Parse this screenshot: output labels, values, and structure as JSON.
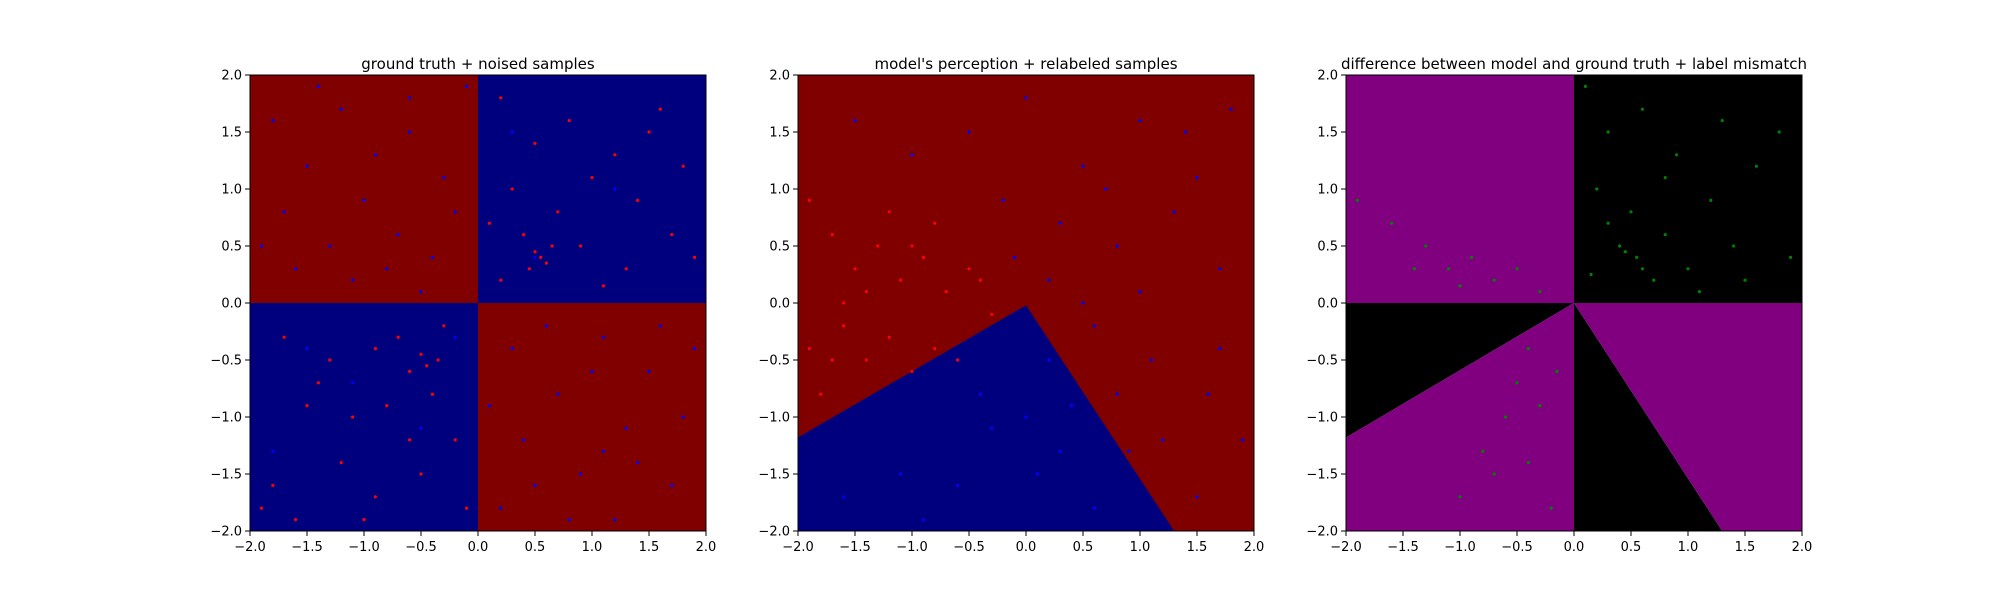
{
  "chart_data": [
    {
      "type": "scatter",
      "title": "ground truth + noised samples",
      "xlim": [
        -2.0,
        2.0
      ],
      "ylim": [
        -2.0,
        2.0
      ],
      "xticks": [
        "−2.0",
        "−1.5",
        "−1.0",
        "−0.5",
        "0.0",
        "0.5",
        "1.0",
        "1.5",
        "2.0"
      ],
      "yticks": [
        "−2.0",
        "−1.5",
        "−1.0",
        "−0.5",
        "0.0",
        "0.5",
        "1.0",
        "1.5",
        "2.0"
      ],
      "xtick_values": [
        -2.0,
        -1.5,
        -1.0,
        -0.5,
        0.0,
        0.5,
        1.0,
        1.5,
        2.0
      ],
      "ytick_values": [
        -2.0,
        -1.5,
        -1.0,
        -0.5,
        0.0,
        0.5,
        1.0,
        1.5,
        2.0
      ],
      "background": "quadrants",
      "colors": {
        "class_a": "#800000",
        "class_b": "#00007f"
      },
      "point_colors": {
        "red": "#ff0000",
        "blue": "#0000ff"
      },
      "series": [
        {
          "color": "blue",
          "points": [
            [
              -1.8,
              1.6
            ],
            [
              -1.5,
              1.2
            ],
            [
              -1.2,
              1.7
            ],
            [
              -0.9,
              1.3
            ],
            [
              -0.6,
              1.5
            ],
            [
              -0.3,
              1.1
            ],
            [
              -1.7,
              0.8
            ],
            [
              -1.3,
              0.5
            ],
            [
              -1.0,
              0.9
            ],
            [
              -0.7,
              0.6
            ],
            [
              -0.4,
              0.4
            ],
            [
              -0.2,
              0.8
            ],
            [
              -1.6,
              0.3
            ],
            [
              -1.1,
              0.2
            ],
            [
              -0.8,
              0.3
            ],
            [
              -0.5,
              0.1
            ],
            [
              -1.4,
              1.9
            ],
            [
              -0.1,
              1.9
            ],
            [
              -1.9,
              0.5
            ],
            [
              -0.6,
              1.8
            ],
            [
              0.3,
              -0.4
            ],
            [
              0.7,
              -0.8
            ],
            [
              1.1,
              -0.3
            ],
            [
              1.5,
              -0.6
            ],
            [
              1.8,
              -1.0
            ],
            [
              0.4,
              -1.2
            ],
            [
              0.9,
              -1.5
            ],
            [
              1.3,
              -1.1
            ],
            [
              1.7,
              -1.6
            ],
            [
              0.2,
              -1.8
            ],
            [
              0.6,
              -0.2
            ],
            [
              1.0,
              -0.6
            ],
            [
              1.4,
              -1.4
            ],
            [
              0.8,
              -1.9
            ],
            [
              1.9,
              -0.4
            ],
            [
              0.5,
              -1.6
            ],
            [
              1.2,
              -1.9
            ],
            [
              0.1,
              -0.9
            ],
            [
              1.6,
              -0.2
            ],
            [
              1.1,
              -1.3
            ],
            [
              -1.5,
              -0.4
            ],
            [
              -1.1,
              -0.7
            ],
            [
              -0.5,
              -1.1
            ],
            [
              -0.2,
              -0.3
            ],
            [
              -1.8,
              -1.3
            ],
            [
              0.5,
              0.4
            ],
            [
              1.2,
              1.0
            ],
            [
              0.3,
              1.5
            ]
          ]
        },
        {
          "color": "red",
          "points": [
            [
              0.2,
              1.8
            ],
            [
              0.5,
              1.4
            ],
            [
              0.8,
              1.6
            ],
            [
              1.2,
              1.3
            ],
            [
              1.6,
              1.7
            ],
            [
              0.3,
              1.0
            ],
            [
              0.7,
              0.8
            ],
            [
              1.0,
              1.1
            ],
            [
              1.4,
              0.9
            ],
            [
              1.8,
              1.2
            ],
            [
              0.4,
              0.6
            ],
            [
              0.55,
              0.4
            ],
            [
              0.6,
              0.35
            ],
            [
              0.5,
              0.45
            ],
            [
              0.65,
              0.5
            ],
            [
              0.45,
              0.3
            ],
            [
              0.9,
              0.5
            ],
            [
              1.3,
              0.3
            ],
            [
              1.7,
              0.6
            ],
            [
              0.2,
              0.2
            ],
            [
              1.1,
              0.15
            ],
            [
              1.9,
              0.4
            ],
            [
              0.1,
              0.7
            ],
            [
              1.5,
              1.5
            ],
            [
              -1.7,
              -0.3
            ],
            [
              -1.3,
              -0.5
            ],
            [
              -0.9,
              -0.4
            ],
            [
              -0.6,
              -0.6
            ],
            [
              -0.3,
              -0.2
            ],
            [
              -1.5,
              -0.9
            ],
            [
              -1.1,
              -1.0
            ],
            [
              -0.8,
              -0.9
            ],
            [
              -0.4,
              -0.8
            ],
            [
              -1.8,
              -1.6
            ],
            [
              -1.2,
              -1.4
            ],
            [
              -0.9,
              -1.7
            ],
            [
              -0.5,
              -1.5
            ],
            [
              -0.2,
              -1.2
            ],
            [
              -1.6,
              -1.9
            ],
            [
              -1.0,
              -1.9
            ],
            [
              -0.7,
              -0.3
            ],
            [
              -0.5,
              -0.45
            ],
            [
              -0.35,
              -0.5
            ],
            [
              -0.45,
              -0.55
            ],
            [
              -1.9,
              -1.8
            ],
            [
              -0.6,
              -1.2
            ],
            [
              -1.4,
              -0.7
            ],
            [
              -0.1,
              -1.8
            ]
          ]
        }
      ]
    },
    {
      "type": "scatter",
      "title": "model's perception + relabeled samples",
      "xlim": [
        -2.0,
        2.0
      ],
      "ylim": [
        -2.0,
        2.0
      ],
      "xticks": [
        "−2.0",
        "−1.5",
        "−1.0",
        "−0.5",
        "0.0",
        "0.5",
        "1.0",
        "1.5",
        "2.0"
      ],
      "yticks": [
        "−2.0",
        "−1.5",
        "−1.0",
        "−0.5",
        "0.0",
        "0.5",
        "1.0",
        "1.5",
        "2.0"
      ],
      "xtick_values": [
        -2.0,
        -1.5,
        -1.0,
        -0.5,
        0.0,
        0.5,
        1.0,
        1.5,
        2.0
      ],
      "ytick_values": [
        -2.0,
        -1.5,
        -1.0,
        -0.5,
        0.0,
        0.5,
        1.0,
        1.5,
        2.0
      ],
      "background": "wedge",
      "wedge_polygon": [
        [
          -2.0,
          -1.18
        ],
        [
          0.0,
          -0.02
        ],
        [
          1.3,
          -2.0
        ],
        [
          -2.0,
          -2.0
        ]
      ],
      "colors": {
        "class_a": "#800000",
        "class_b": "#00007f"
      },
      "point_colors": {
        "red": "#ff0000",
        "blue": "#0000ff"
      },
      "series": [
        {
          "color": "red",
          "points": [
            [
              -1.9,
              0.9
            ],
            [
              -1.7,
              0.6
            ],
            [
              -1.5,
              0.3
            ],
            [
              -1.3,
              0.5
            ],
            [
              -1.1,
              0.2
            ],
            [
              -0.9,
              0.4
            ],
            [
              -0.7,
              0.1
            ],
            [
              -0.5,
              0.3
            ],
            [
              -0.3,
              -0.1
            ],
            [
              -1.6,
              -0.2
            ],
            [
              -1.4,
              -0.5
            ],
            [
              -1.2,
              -0.3
            ],
            [
              -1.0,
              -0.6
            ],
            [
              -0.8,
              -0.4
            ],
            [
              -0.6,
              -0.5
            ],
            [
              -1.8,
              -0.8
            ],
            [
              -1.9,
              -0.4
            ],
            [
              -1.6,
              0.0
            ],
            [
              -1.0,
              0.5
            ],
            [
              -0.8,
              0.7
            ],
            [
              -1.2,
              0.8
            ],
            [
              -0.4,
              0.2
            ],
            [
              -1.4,
              0.1
            ],
            [
              -1.7,
              -0.5
            ]
          ]
        },
        {
          "color": "blue",
          "points": [
            [
              -1.5,
              1.6
            ],
            [
              -1.0,
              1.3
            ],
            [
              -0.5,
              1.5
            ],
            [
              0.0,
              1.8
            ],
            [
              0.5,
              1.2
            ],
            [
              1.0,
              1.6
            ],
            [
              1.5,
              1.1
            ],
            [
              1.8,
              1.7
            ],
            [
              -0.2,
              0.9
            ],
            [
              0.3,
              0.7
            ],
            [
              0.8,
              0.5
            ],
            [
              1.3,
              0.8
            ],
            [
              1.7,
              0.3
            ],
            [
              0.2,
              0.2
            ],
            [
              0.6,
              -0.2
            ],
            [
              1.1,
              -0.5
            ],
            [
              1.6,
              -0.8
            ],
            [
              1.9,
              -1.2
            ],
            [
              1.5,
              -1.7
            ],
            [
              0.9,
              -1.3
            ],
            [
              0.4,
              -0.9
            ],
            [
              0.1,
              -1.5
            ],
            [
              -0.3,
              -1.1
            ],
            [
              -0.6,
              -1.6
            ],
            [
              0.6,
              -1.8
            ],
            [
              -1.1,
              -1.5
            ],
            [
              -1.6,
              -1.7
            ],
            [
              -0.9,
              -1.9
            ],
            [
              0.2,
              -0.5
            ],
            [
              0.8,
              -0.8
            ],
            [
              0.0,
              -1.0
            ],
            [
              1.2,
              -1.2
            ],
            [
              -0.4,
              -0.8
            ],
            [
              0.3,
              -1.3
            ],
            [
              1.7,
              -0.4
            ],
            [
              1.0,
              0.1
            ],
            [
              -0.1,
              0.4
            ],
            [
              0.7,
              1.0
            ],
            [
              1.4,
              1.5
            ],
            [
              0.5,
              0.0
            ]
          ]
        }
      ]
    },
    {
      "type": "scatter",
      "title": "difference between model and ground truth + label mismatch",
      "xlim": [
        -2.0,
        2.0
      ],
      "ylim": [
        -2.0,
        2.0
      ],
      "xticks": [
        "−2.0",
        "−1.5",
        "−1.0",
        "−0.5",
        "0.0",
        "0.5",
        "1.0",
        "1.5",
        "2.0"
      ],
      "yticks": [
        "−2.0",
        "−1.5",
        "−1.0",
        "−0.5",
        "0.0",
        "0.5",
        "1.0",
        "1.5",
        "2.0"
      ],
      "xtick_values": [
        -2.0,
        -1.5,
        -1.0,
        -0.5,
        0.0,
        0.5,
        1.0,
        1.5,
        2.0
      ],
      "ytick_values": [
        -2.0,
        -1.5,
        -1.0,
        -0.5,
        0.0,
        0.5,
        1.0,
        1.5,
        2.0
      ],
      "background": "difference",
      "colors": {
        "match": "#800080",
        "mismatch": "#000000"
      },
      "point_colors": {
        "green": "#008000"
      },
      "series": [
        {
          "color": "green",
          "points": [
            [
              0.1,
              1.9
            ],
            [
              0.3,
              1.5
            ],
            [
              0.6,
              1.7
            ],
            [
              0.9,
              1.3
            ],
            [
              1.3,
              1.6
            ],
            [
              1.8,
              1.5
            ],
            [
              0.2,
              1.0
            ],
            [
              0.5,
              0.8
            ],
            [
              0.8,
              1.1
            ],
            [
              1.2,
              0.9
            ],
            [
              1.6,
              1.2
            ],
            [
              0.4,
              0.5
            ],
            [
              0.55,
              0.4
            ],
            [
              0.6,
              0.3
            ],
            [
              0.45,
              0.45
            ],
            [
              0.7,
              0.2
            ],
            [
              1.0,
              0.3
            ],
            [
              1.4,
              0.5
            ],
            [
              1.9,
              0.4
            ],
            [
              0.15,
              0.25
            ],
            [
              1.1,
              0.1
            ],
            [
              0.3,
              0.7
            ],
            [
              1.5,
              0.2
            ],
            [
              0.8,
              0.6
            ],
            [
              -1.9,
              0.9
            ],
            [
              -1.6,
              0.7
            ],
            [
              -1.3,
              0.5
            ],
            [
              -1.1,
              0.3
            ],
            [
              -0.9,
              0.4
            ],
            [
              -0.7,
              0.2
            ],
            [
              -0.5,
              0.3
            ],
            [
              -0.3,
              0.1
            ],
            [
              -1.4,
              0.3
            ],
            [
              -1.0,
              0.15
            ],
            [
              -0.4,
              -0.4
            ],
            [
              -0.5,
              -0.7
            ],
            [
              -0.6,
              -1.0
            ],
            [
              -0.8,
              -1.3
            ],
            [
              -1.0,
              -1.7
            ],
            [
              -0.3,
              -0.9
            ],
            [
              -0.4,
              -1.4
            ],
            [
              -0.2,
              -1.8
            ],
            [
              -0.7,
              -1.5
            ],
            [
              -0.15,
              -0.6
            ]
          ]
        }
      ]
    }
  ]
}
